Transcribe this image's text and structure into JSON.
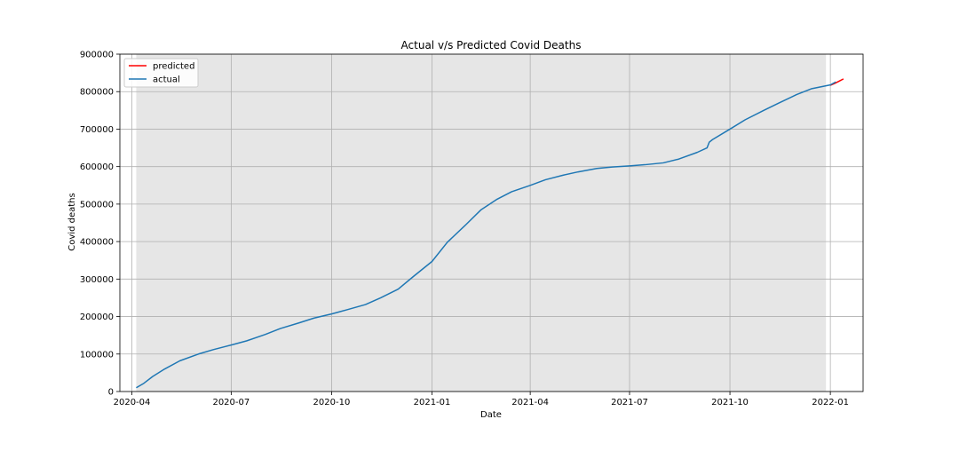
{
  "chart_data": {
    "type": "line",
    "title": "Actual v/s Predicted Covid Deaths",
    "xlabel": "Date",
    "ylabel": "Covid deaths",
    "xlim": [
      "2020-03-21",
      "2022-01-31"
    ],
    "ylim": [
      0,
      900000
    ],
    "grid": true,
    "legend_position": "top-left",
    "x_ticks": [
      "2020-04",
      "2020-07",
      "2020-10",
      "2021-01",
      "2021-04",
      "2021-07",
      "2021-10",
      "2022-01"
    ],
    "y_ticks": [
      0,
      100000,
      200000,
      300000,
      400000,
      500000,
      600000,
      700000,
      800000,
      900000
    ],
    "shaded_region": {
      "start": "2020-04-05",
      "end": "2021-12-28",
      "color": "#e6e6e6"
    },
    "series": [
      {
        "name": "predicted",
        "color": "#ff0000",
        "points": [
          [
            "2022-01-01",
            817000
          ],
          [
            "2022-01-05",
            822000
          ],
          [
            "2022-01-09",
            828000
          ],
          [
            "2022-01-13",
            834000
          ]
        ]
      },
      {
        "name": "actual",
        "color": "#1f77b4",
        "points": [
          [
            "2020-04-05",
            10000
          ],
          [
            "2020-04-12",
            22000
          ],
          [
            "2020-04-20",
            40000
          ],
          [
            "2020-05-01",
            60000
          ],
          [
            "2020-05-15",
            82000
          ],
          [
            "2020-06-01",
            100000
          ],
          [
            "2020-06-15",
            112000
          ],
          [
            "2020-07-01",
            124000
          ],
          [
            "2020-07-15",
            135000
          ],
          [
            "2020-08-01",
            152000
          ],
          [
            "2020-08-15",
            168000
          ],
          [
            "2020-09-01",
            183000
          ],
          [
            "2020-09-15",
            196000
          ],
          [
            "2020-10-01",
            207000
          ],
          [
            "2020-10-15",
            218000
          ],
          [
            "2020-11-01",
            232000
          ],
          [
            "2020-11-15",
            250000
          ],
          [
            "2020-12-01",
            273000
          ],
          [
            "2020-12-15",
            307000
          ],
          [
            "2021-01-01",
            347000
          ],
          [
            "2021-01-15",
            398000
          ],
          [
            "2021-02-01",
            445000
          ],
          [
            "2021-02-15",
            485000
          ],
          [
            "2021-03-01",
            512000
          ],
          [
            "2021-03-15",
            533000
          ],
          [
            "2021-04-01",
            550000
          ],
          [
            "2021-04-15",
            565000
          ],
          [
            "2021-05-01",
            577000
          ],
          [
            "2021-05-15",
            586000
          ],
          [
            "2021-06-01",
            595000
          ],
          [
            "2021-06-15",
            599000
          ],
          [
            "2021-07-01",
            602000
          ],
          [
            "2021-07-15",
            605000
          ],
          [
            "2021-08-01",
            610000
          ],
          [
            "2021-08-15",
            620000
          ],
          [
            "2021-09-01",
            638000
          ],
          [
            "2021-09-10",
            650000
          ],
          [
            "2021-09-12",
            665000
          ],
          [
            "2021-09-15",
            672000
          ],
          [
            "2021-10-01",
            700000
          ],
          [
            "2021-10-15",
            725000
          ],
          [
            "2021-11-01",
            750000
          ],
          [
            "2021-11-15",
            770000
          ],
          [
            "2021-12-01",
            792000
          ],
          [
            "2021-12-15",
            808000
          ],
          [
            "2022-01-01",
            818000
          ],
          [
            "2022-01-06",
            826000
          ]
        ]
      }
    ]
  }
}
